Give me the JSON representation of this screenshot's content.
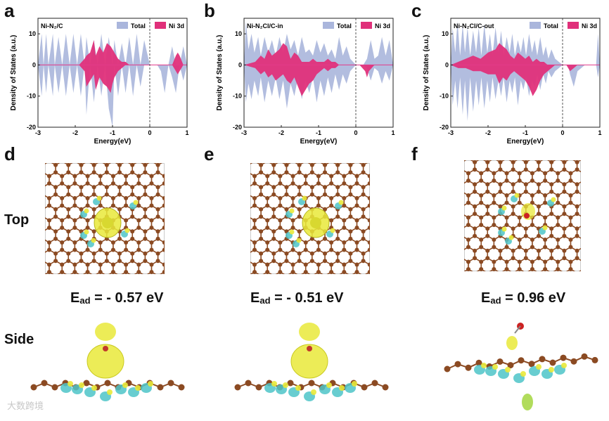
{
  "figure": {
    "row_labels": {
      "top": "Top",
      "side": "Side"
    },
    "watermark": "大数跨境",
    "panels": [
      {
        "letter": "a",
        "title": "Ni-N₂/C"
      },
      {
        "letter": "b",
        "title": "Ni-N₂Cl/C-in"
      },
      {
        "letter": "c",
        "title": "Ni-N₂Cl/C-out"
      },
      {
        "letter": "d",
        "ead_prefix": "E",
        "ead_sub": "ad",
        "ead_value": " = - 0.57 eV"
      },
      {
        "letter": "e",
        "ead_prefix": "E",
        "ead_sub": "ad",
        "ead_value": " = - 0.51 eV"
      },
      {
        "letter": "f",
        "ead_prefix": "E",
        "ead_sub": "ad",
        "ead_value": " = 0.96 eV"
      }
    ]
  },
  "colors": {
    "total": "#aab6dc",
    "ni3d": "#e0307a",
    "atom": "#8b4a22",
    "yellow": "#e9e93a",
    "cyan": "#4ec4c8",
    "red": "#cc2222"
  },
  "chart_data": [
    {
      "type": "area",
      "title": "Ni-N₂/C",
      "xlabel": "Energy(eV)",
      "ylabel": "Density of States (a.u.)",
      "xlim": [
        -3,
        1
      ],
      "ylim": [
        -20,
        15
      ],
      "xticks": [
        -3,
        -2,
        -1,
        0,
        1
      ],
      "yticks": [
        -20,
        -10,
        0,
        10
      ],
      "xtick_labels": [
        "-3",
        "-2",
        "-1",
        "0",
        "1"
      ],
      "ytick_labels": [
        "-20",
        "-10",
        "0",
        "10"
      ],
      "fermi_level": 0,
      "legend": [
        "Total",
        "Ni 3d"
      ],
      "series": [
        {
          "name": "Total",
          "x": [
            -3.0,
            -2.9,
            -2.85,
            -2.78,
            -2.72,
            -2.6,
            -2.55,
            -2.45,
            -2.35,
            -2.25,
            -2.15,
            -2.05,
            -1.95,
            -1.85,
            -1.75,
            -1.7,
            -1.6,
            -1.5,
            -1.4,
            -1.3,
            -1.2,
            -1.1,
            -1.0,
            -0.95,
            -0.85,
            -0.75,
            -0.65,
            -0.55,
            -0.45,
            -0.35,
            -0.25,
            -0.15,
            0.0,
            0.1,
            0.2,
            0.3,
            0.4,
            0.5,
            0.6,
            0.7,
            0.8,
            0.9,
            1.0
          ],
          "up": [
            0,
            10,
            0,
            10,
            0,
            10,
            0,
            9,
            0,
            10,
            0,
            10,
            0,
            10,
            0,
            9,
            0,
            8,
            0,
            10,
            0,
            9,
            0,
            8,
            0,
            7,
            0,
            9,
            0,
            10,
            0,
            8,
            0,
            0,
            0,
            0,
            0,
            0,
            6,
            0,
            0,
            6,
            0
          ],
          "down": [
            0,
            -10,
            0,
            -9,
            0,
            -10,
            0,
            -9,
            0,
            -10,
            0,
            -9,
            0,
            -10,
            0,
            -16,
            0,
            -12,
            0,
            -10,
            0,
            -14,
            -20,
            0,
            -10,
            0,
            -9,
            0,
            -10,
            0,
            -7,
            0,
            0,
            0,
            0,
            -2,
            -9,
            0,
            -4,
            -9,
            0,
            -5,
            0
          ]
        },
        {
          "name": "Ni 3d",
          "x": [
            -3.0,
            -1.9,
            -1.75,
            -1.7,
            -1.6,
            -1.5,
            -1.45,
            -1.35,
            -1.25,
            -1.15,
            -1.05,
            -1.0,
            -0.95,
            -0.85,
            -0.75,
            -0.65,
            -0.55,
            -0.45,
            -0.35,
            -0.25,
            0.0,
            0.6,
            0.7,
            0.75,
            0.8,
            0.9,
            1.0
          ],
          "up": [
            0,
            0,
            2,
            3,
            4,
            8,
            3,
            6,
            4,
            7,
            6,
            5,
            4,
            2,
            1,
            1,
            0,
            0,
            0,
            0,
            0,
            0,
            3,
            4,
            3,
            0,
            0
          ],
          "down": [
            0,
            0,
            -2,
            -7,
            -5,
            -3,
            -8,
            -4,
            -6,
            -7,
            -9,
            -6,
            -4,
            -2,
            -1,
            0,
            0,
            0,
            0,
            0,
            0,
            0,
            -2,
            -3,
            -2,
            0,
            0
          ]
        }
      ]
    },
    {
      "type": "area",
      "title": "Ni-N₂Cl/C-in",
      "xlabel": "Energy(eV)",
      "ylabel": "Density of States (a.u.)",
      "xlim": [
        -3,
        1
      ],
      "ylim": [
        -20,
        15
      ],
      "xticks": [
        -3,
        -2,
        -1,
        0,
        1
      ],
      "yticks": [
        -20,
        -10,
        0,
        10
      ],
      "xtick_labels": [
        "-3",
        "-2",
        "-1",
        "0",
        "1"
      ],
      "ytick_labels": [
        "-20",
        "-10",
        "0",
        "10"
      ],
      "fermi_level": 0,
      "legend": [
        "Total",
        "Ni 3d"
      ],
      "series": [
        {
          "name": "Total",
          "x": [
            -3.0,
            -2.95,
            -2.88,
            -2.8,
            -2.72,
            -2.62,
            -2.55,
            -2.45,
            -2.35,
            -2.25,
            -2.15,
            -2.05,
            -1.95,
            -1.85,
            -1.75,
            -1.65,
            -1.55,
            -1.45,
            -1.35,
            -1.25,
            -1.15,
            -1.05,
            -0.95,
            -0.85,
            -0.75,
            -0.65,
            -0.55,
            -0.45,
            -0.35,
            -0.25,
            -0.15,
            0.0,
            0.1,
            0.2,
            0.3,
            0.4,
            0.5,
            0.6,
            0.7,
            0.8,
            0.9,
            1.0
          ],
          "up": [
            0,
            14,
            5,
            10,
            4,
            9,
            3,
            9,
            4,
            8,
            3,
            9,
            4,
            10,
            5,
            8,
            3,
            9,
            4,
            5,
            3,
            8,
            4,
            7,
            3,
            5,
            2,
            9,
            3,
            6,
            2,
            0,
            0,
            0,
            2,
            8,
            2,
            3,
            9,
            3,
            8,
            0
          ],
          "down": [
            0,
            -12,
            -6,
            -11,
            -5,
            -10,
            -4,
            -12,
            -5,
            -10,
            -4,
            -11,
            -5,
            -14,
            -6,
            -10,
            -4,
            -11,
            -5,
            -9,
            -4,
            -12,
            -5,
            -10,
            -4,
            -9,
            -3,
            -8,
            -3,
            -6,
            -2,
            0,
            0,
            0,
            -1,
            -5,
            -1,
            -2,
            -6,
            -2,
            -5,
            0
          ]
        },
        {
          "name": "Ni 3d",
          "x": [
            -3.0,
            -2.7,
            -2.55,
            -2.45,
            -2.35,
            -2.25,
            -2.15,
            -2.05,
            -1.95,
            -1.85,
            -1.75,
            -1.65,
            -1.55,
            -1.45,
            -1.35,
            -1.25,
            -1.15,
            -1.05,
            -0.95,
            -0.85,
            -0.75,
            -0.65,
            -0.55,
            -0.45,
            -0.35,
            -0.25,
            0.0,
            0.1,
            0.25,
            0.3,
            0.35,
            0.5,
            1.0
          ],
          "up": [
            0,
            1,
            3,
            2,
            5,
            3,
            4,
            5,
            7,
            6,
            2,
            4,
            3,
            1,
            1,
            1,
            2,
            1,
            1,
            1,
            2,
            1,
            1,
            0,
            0,
            0,
            0,
            0,
            0,
            0,
            0,
            0,
            0
          ],
          "down": [
            0,
            -1,
            -3,
            -2,
            -4,
            -3,
            -5,
            -4,
            -3,
            -5,
            -6,
            -4,
            -7,
            -10,
            -8,
            -6,
            -5,
            -3,
            -2,
            -1,
            -2,
            -1,
            -1,
            0,
            0,
            0,
            0,
            0,
            -2,
            -4,
            -2,
            0,
            0
          ]
        }
      ]
    },
    {
      "type": "area",
      "title": "Ni-N₂Cl/C-out",
      "xlabel": "Energy(eV)",
      "ylabel": "Density of States (a.u.)",
      "xlim": [
        -3,
        1
      ],
      "ylim": [
        -20,
        15
      ],
      "xticks": [
        -3,
        -2,
        -1,
        0,
        1
      ],
      "yticks": [
        -20,
        -10,
        0,
        10
      ],
      "xtick_labels": [
        "-3",
        "-2",
        "-1",
        "0",
        "1"
      ],
      "ytick_labels": [
        "-20",
        "-10",
        "0",
        "10"
      ],
      "fermi_level": 0,
      "legend": [
        "Total",
        "Ni 3d"
      ],
      "series": [
        {
          "name": "Total",
          "x": [
            -3.0,
            -2.95,
            -2.88,
            -2.82,
            -2.75,
            -2.68,
            -2.62,
            -2.55,
            -2.48,
            -2.4,
            -2.32,
            -2.25,
            -2.18,
            -2.1,
            -2.02,
            -1.95,
            -1.88,
            -1.8,
            -1.72,
            -1.65,
            -1.58,
            -1.5,
            -1.42,
            -1.35,
            -1.28,
            -1.2,
            -1.12,
            -1.05,
            -0.98,
            -0.9,
            -0.82,
            -0.75,
            -0.68,
            -0.6,
            -0.52,
            -0.45,
            -0.38,
            -0.3,
            -0.2,
            -0.1,
            0.0,
            0.15,
            0.2,
            0.3,
            0.4,
            0.5,
            0.6,
            0.7,
            0.8,
            0.9,
            0.95,
            1.0
          ],
          "up": [
            0,
            12,
            4,
            14,
            3,
            13,
            4,
            12,
            3,
            11,
            4,
            12,
            3,
            13,
            4,
            10,
            3,
            12,
            4,
            11,
            3,
            9,
            4,
            10,
            3,
            8,
            4,
            9,
            3,
            10,
            4,
            8,
            3,
            9,
            3,
            6,
            2,
            5,
            2,
            1,
            0,
            0,
            0,
            0,
            0,
            0,
            0,
            0,
            0,
            0,
            10,
            0
          ],
          "down": [
            0,
            -13,
            -5,
            -14,
            -4,
            -16,
            -5,
            -18,
            -4,
            -15,
            -5,
            -13,
            -4,
            -14,
            -5,
            -12,
            -4,
            -11,
            -5,
            -10,
            -4,
            -12,
            -5,
            -9,
            -4,
            -13,
            -5,
            -8,
            -4,
            -10,
            -5,
            -7,
            -3,
            -8,
            -3,
            -6,
            -2,
            -4,
            -2,
            -1,
            0,
            0,
            -3,
            -7,
            -2,
            -1,
            0,
            0,
            0,
            0,
            -4,
            0
          ]
        },
        {
          "name": "Ni 3d",
          "x": [
            -3.0,
            -2.8,
            -2.6,
            -2.4,
            -2.2,
            -2.0,
            -1.8,
            -1.7,
            -1.6,
            -1.5,
            -1.4,
            -1.3,
            -1.2,
            -1.1,
            -1.0,
            -0.9,
            -0.8,
            -0.7,
            -0.6,
            -0.5,
            -0.4,
            -0.3,
            -0.2,
            0.0,
            0.1,
            0.2,
            0.3,
            0.4,
            1.0
          ],
          "up": [
            0,
            1,
            2,
            3,
            2,
            4,
            5,
            7,
            6,
            5,
            3,
            2,
            4,
            3,
            2,
            3,
            1,
            2,
            1,
            1,
            0,
            0,
            0,
            0,
            0,
            0,
            0,
            0,
            0
          ],
          "down": [
            0,
            -1,
            -1,
            -2,
            -2,
            -3,
            -3,
            -6,
            -4,
            -5,
            -3,
            -2,
            -3,
            -4,
            -5,
            -7,
            -10,
            -8,
            -5,
            -3,
            -2,
            -1,
            0,
            0,
            0,
            -2,
            -1,
            0,
            0
          ]
        }
      ]
    }
  ]
}
